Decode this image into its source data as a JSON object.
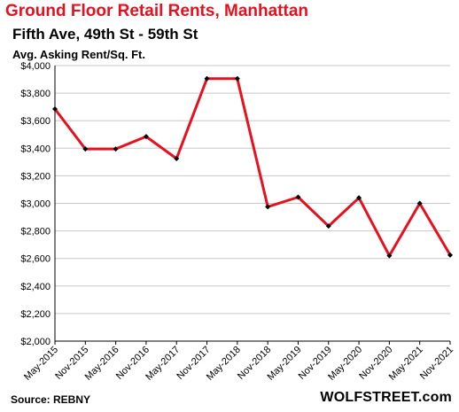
{
  "chart_data": {
    "type": "line",
    "title": "Ground  Floor Retail Rents, Manhattan",
    "subtitle": "Fifth Ave, 49th St - 59th St",
    "ylabel": "Avg. Asking Rent/Sq. Ft.",
    "source": "Source: REBNY",
    "brand": "WOLFSTREET.com",
    "ylim": [
      2000,
      4000
    ],
    "yticks": [
      "$2,000",
      "$2,200",
      "$2,400",
      "$2,600",
      "$2,800",
      "$3,000",
      "$3,200",
      "$3,400",
      "$3,600",
      "$3,800",
      "$4,000"
    ],
    "ytick_values": [
      2000,
      2200,
      2400,
      2600,
      2800,
      3000,
      3200,
      3400,
      3600,
      3800,
      4000
    ],
    "categories": [
      "May-2015",
      "Nov-2015",
      "May-2016",
      "Nov-2016",
      "May-2017",
      "Nov-2017",
      "May-2018",
      "Nov-2018",
      "May-2019",
      "Nov-2019",
      "May-2020",
      "Nov-2020",
      "May-2021",
      "Nov-2021"
    ],
    "series": [
      {
        "values": [
          3685,
          3395,
          3395,
          3485,
          3325,
          3905,
          3905,
          2975,
          3045,
          2835,
          3040,
          2620,
          3000,
          2625
        ]
      }
    ],
    "line_color": "#e8101e",
    "marker_color": "#000000",
    "grid": "horizontal"
  }
}
